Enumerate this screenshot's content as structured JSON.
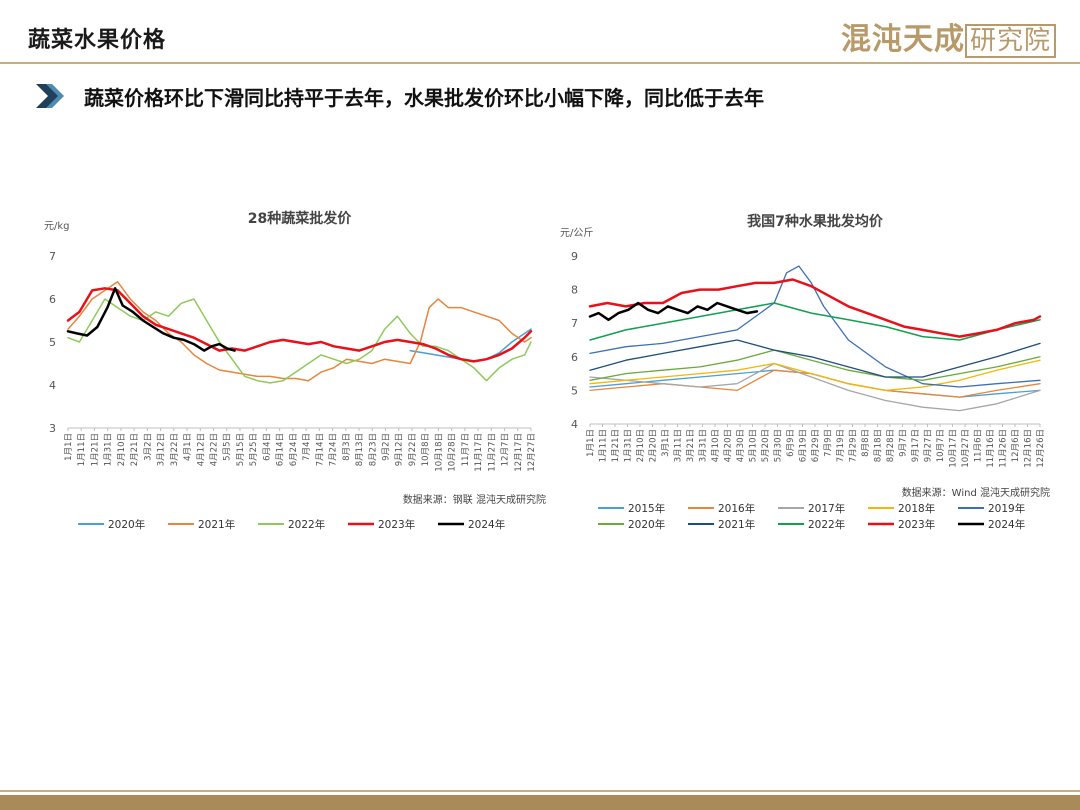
{
  "header": {
    "title": "蔬菜水果价格",
    "logo_text": "混沌天成研究院",
    "subtitle": "蔬菜价格环比下滑同比持平于去年，水果批发价环比小幅下降，同比低于去年"
  },
  "colors": {
    "accent": "#c8ad7f",
    "chevron_dark": "#1f3f5c",
    "chevron_light": "#4f8ab0",
    "footer": "#a88b58"
  },
  "chart_data": [
    {
      "type": "line",
      "title": "28种蔬菜批发价",
      "ylabel": "元/kg",
      "ylim": [
        3,
        7
      ],
      "yticks": [
        "3",
        "4",
        "5",
        "6",
        "7"
      ],
      "x_tick_labels": [
        "1月1日",
        "1月11日",
        "1月21日",
        "1月31日",
        "2月10日",
        "2月21日",
        "3月2日",
        "3月12日",
        "3月22日",
        "4月1日",
        "4月12日",
        "4月22日",
        "5月5日",
        "5月15日",
        "5月25日",
        "6月4日",
        "6月14日",
        "6月24日",
        "7月4日",
        "7月14日",
        "7月24日",
        "8月3日",
        "8月13日",
        "8月23日",
        "9月2日",
        "9月12日",
        "9月22日",
        "10月8日",
        "10月18日",
        "10月28日",
        "11月7日",
        "11月17日",
        "11月27日",
        "12月7日",
        "12月17日",
        "12月27日"
      ],
      "source": "数据来源：钢联  混沌天成研究院",
      "grid": false,
      "legend_position": "bottom",
      "series": [
        {
          "name": "2020年",
          "color": "#4a9fd4",
          "width": 1.5,
          "x": [
            270,
            280,
            290,
            300,
            310,
            320,
            330,
            340,
            350,
            365
          ],
          "y": [
            4.8,
            4.75,
            4.7,
            4.65,
            4.6,
            4.55,
            4.6,
            4.75,
            5.0,
            5.3
          ]
        },
        {
          "name": "2021年",
          "color": "#e8853d",
          "width": 1.5,
          "x": [
            1,
            10,
            20,
            30,
            40,
            50,
            60,
            70,
            80,
            90,
            100,
            110,
            120,
            130,
            140,
            150,
            160,
            170,
            180,
            190,
            200,
            210,
            220,
            230,
            240,
            250,
            260,
            270,
            278,
            285,
            292,
            300,
            310,
            320,
            330,
            340,
            350,
            360,
            365
          ],
          "y": [
            5.3,
            5.6,
            6.0,
            6.2,
            6.4,
            6.0,
            5.7,
            5.5,
            5.2,
            5.0,
            4.7,
            4.5,
            4.35,
            4.3,
            4.25,
            4.2,
            4.2,
            4.15,
            4.15,
            4.1,
            4.3,
            4.4,
            4.6,
            4.55,
            4.5,
            4.6,
            4.55,
            4.5,
            5.0,
            5.8,
            6.0,
            5.8,
            5.8,
            5.7,
            5.6,
            5.5,
            5.2,
            5.0,
            5.1
          ]
        },
        {
          "name": "2022年",
          "color": "#8fc95a",
          "width": 1.5,
          "x": [
            1,
            10,
            20,
            30,
            40,
            50,
            60,
            70,
            80,
            90,
            100,
            110,
            120,
            130,
            140,
            150,
            160,
            170,
            180,
            190,
            200,
            210,
            220,
            230,
            240,
            250,
            260,
            270,
            280,
            290,
            300,
            310,
            320,
            330,
            340,
            350,
            360,
            365
          ],
          "y": [
            5.1,
            5.0,
            5.5,
            6.0,
            5.8,
            5.6,
            5.5,
            5.7,
            5.6,
            5.9,
            6.0,
            5.5,
            5.0,
            4.6,
            4.2,
            4.1,
            4.05,
            4.1,
            4.3,
            4.5,
            4.7,
            4.6,
            4.5,
            4.6,
            4.8,
            5.3,
            5.6,
            5.2,
            4.9,
            4.9,
            4.8,
            4.6,
            4.4,
            4.1,
            4.4,
            4.6,
            4.7,
            5.0
          ]
        },
        {
          "name": "2023年",
          "color": "#e8101a",
          "width": 2.5,
          "x": [
            1,
            10,
            20,
            30,
            40,
            50,
            60,
            70,
            80,
            90,
            100,
            110,
            120,
            130,
            140,
            150,
            160,
            170,
            180,
            190,
            200,
            210,
            220,
            230,
            240,
            250,
            260,
            270,
            280,
            290,
            300,
            310,
            320,
            330,
            340,
            350,
            360,
            365
          ],
          "y": [
            5.5,
            5.7,
            6.2,
            6.25,
            6.2,
            5.9,
            5.6,
            5.4,
            5.3,
            5.2,
            5.1,
            4.95,
            4.8,
            4.85,
            4.8,
            4.9,
            5.0,
            5.05,
            5.0,
            4.95,
            5.0,
            4.9,
            4.85,
            4.8,
            4.9,
            5.0,
            5.05,
            5.0,
            4.95,
            4.85,
            4.7,
            4.6,
            4.55,
            4.6,
            4.7,
            4.85,
            5.1,
            5.25
          ]
        },
        {
          "name": "2024年",
          "color": "#000000",
          "width": 2.5,
          "x": [
            1,
            8,
            16,
            24,
            32,
            38,
            44,
            52,
            60,
            68,
            76,
            84,
            92,
            100,
            108,
            114,
            120,
            126,
            132
          ],
          "y": [
            5.25,
            5.2,
            5.15,
            5.35,
            5.8,
            6.25,
            5.85,
            5.7,
            5.5,
            5.35,
            5.2,
            5.1,
            5.05,
            4.95,
            4.8,
            4.9,
            4.95,
            4.85,
            4.8
          ]
        }
      ]
    },
    {
      "type": "line",
      "title": "我国7种水果批发均价",
      "ylabel": "元/公斤",
      "ylim": [
        4,
        9
      ],
      "yticks": [
        "4",
        "5",
        "6",
        "7",
        "8",
        "9"
      ],
      "x_tick_labels": [
        "1月1日",
        "1月11日",
        "1月21日",
        "1月31日",
        "2月10日",
        "2月20日",
        "3月1日",
        "3月11日",
        "3月21日",
        "3月31日",
        "4月10日",
        "4月20日",
        "4月30日",
        "5月10日",
        "5月20日",
        "5月30日",
        "6月9日",
        "6月19日",
        "6月29日",
        "7月9日",
        "7月19日",
        "7月29日",
        "8月8日",
        "8月18日",
        "8月28日",
        "9月7日",
        "9月17日",
        "9月27日",
        "10月7日",
        "10月17日",
        "10月27日",
        "11月6日",
        "11月16日",
        "11月26日",
        "12月6日",
        "12月16日",
        "12月26日"
      ],
      "source": "数据来源：Wind  混沌天成研究院",
      "grid": false,
      "legend_position": "bottom",
      "series": [
        {
          "name": "2015年",
          "color": "#4a9fd4",
          "width": 1.3,
          "x": [
            1,
            30,
            60,
            90,
            120,
            150,
            180,
            210,
            240,
            270,
            300,
            330,
            365
          ],
          "y": [
            5.1,
            5.2,
            5.3,
            5.4,
            5.5,
            5.6,
            5.5,
            5.2,
            5.0,
            4.9,
            4.8,
            4.9,
            5.0
          ]
        },
        {
          "name": "2016年",
          "color": "#e8853d",
          "width": 1.3,
          "x": [
            1,
            30,
            60,
            90,
            120,
            150,
            180,
            210,
            240,
            270,
            300,
            330,
            365
          ],
          "y": [
            5.0,
            5.1,
            5.2,
            5.1,
            5.0,
            5.6,
            5.5,
            5.2,
            5.0,
            4.9,
            4.8,
            5.0,
            5.2
          ]
        },
        {
          "name": "2017年",
          "color": "#a6a6a6",
          "width": 1.3,
          "x": [
            1,
            30,
            60,
            90,
            120,
            150,
            180,
            210,
            240,
            270,
            300,
            330,
            365
          ],
          "y": [
            5.4,
            5.3,
            5.2,
            5.1,
            5.2,
            5.8,
            5.4,
            5.0,
            4.7,
            4.5,
            4.4,
            4.6,
            5.0
          ]
        },
        {
          "name": "2018年",
          "color": "#f2b707",
          "width": 1.3,
          "x": [
            1,
            30,
            60,
            90,
            120,
            150,
            180,
            210,
            240,
            270,
            300,
            330,
            365
          ],
          "y": [
            5.2,
            5.3,
            5.4,
            5.5,
            5.6,
            5.8,
            5.5,
            5.2,
            5.0,
            5.1,
            5.3,
            5.6,
            5.9
          ]
        },
        {
          "name": "2019年",
          "color": "#3d6fb3",
          "width": 1.3,
          "x": [
            1,
            30,
            60,
            90,
            120,
            150,
            160,
            170,
            180,
            190,
            210,
            240,
            270,
            300,
            330,
            365
          ],
          "y": [
            6.1,
            6.3,
            6.4,
            6.6,
            6.8,
            7.6,
            8.5,
            8.7,
            8.2,
            7.5,
            6.5,
            5.7,
            5.2,
            5.1,
            5.2,
            5.3
          ]
        },
        {
          "name": "2020年",
          "color": "#6aaa3a",
          "width": 1.3,
          "x": [
            1,
            30,
            60,
            90,
            120,
            150,
            180,
            210,
            240,
            270,
            300,
            330,
            365
          ],
          "y": [
            5.3,
            5.5,
            5.6,
            5.7,
            5.9,
            6.2,
            5.9,
            5.6,
            5.4,
            5.3,
            5.5,
            5.7,
            6.0
          ]
        },
        {
          "name": "2021年",
          "color": "#1f4e79",
          "width": 1.3,
          "x": [
            1,
            30,
            60,
            90,
            120,
            150,
            180,
            210,
            240,
            270,
            300,
            330,
            365
          ],
          "y": [
            5.6,
            5.9,
            6.1,
            6.3,
            6.5,
            6.2,
            6.0,
            5.7,
            5.4,
            5.4,
            5.7,
            6.0,
            6.4
          ]
        },
        {
          "name": "2022年",
          "color": "#12a050",
          "width": 1.5,
          "x": [
            1,
            30,
            60,
            90,
            120,
            150,
            180,
            210,
            240,
            270,
            300,
            330,
            365
          ],
          "y": [
            6.5,
            6.8,
            7.0,
            7.2,
            7.4,
            7.6,
            7.3,
            7.1,
            6.9,
            6.6,
            6.5,
            6.8,
            7.1
          ]
        },
        {
          "name": "2023年",
          "color": "#e8101a",
          "width": 2.5,
          "x": [
            1,
            15,
            30,
            45,
            60,
            75,
            90,
            105,
            120,
            135,
            150,
            165,
            180,
            195,
            210,
            225,
            240,
            255,
            270,
            285,
            300,
            315,
            330,
            345,
            360,
            365
          ],
          "y": [
            7.5,
            7.6,
            7.5,
            7.6,
            7.6,
            7.9,
            8.0,
            8.0,
            8.1,
            8.2,
            8.2,
            8.3,
            8.1,
            7.8,
            7.5,
            7.3,
            7.1,
            6.9,
            6.8,
            6.7,
            6.6,
            6.7,
            6.8,
            7.0,
            7.1,
            7.2
          ]
        },
        {
          "name": "2024年",
          "color": "#000000",
          "width": 2.5,
          "x": [
            1,
            8,
            16,
            24,
            32,
            40,
            48,
            56,
            64,
            72,
            80,
            88,
            96,
            104,
            112,
            120,
            128,
            136
          ],
          "y": [
            7.2,
            7.3,
            7.1,
            7.3,
            7.4,
            7.6,
            7.4,
            7.3,
            7.5,
            7.4,
            7.3,
            7.5,
            7.4,
            7.6,
            7.5,
            7.4,
            7.3,
            7.35
          ]
        }
      ]
    }
  ]
}
